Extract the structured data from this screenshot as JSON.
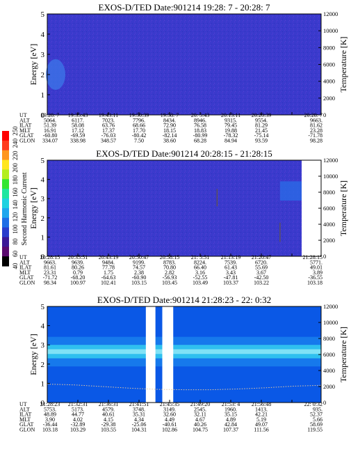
{
  "chart_data": [
    {
      "type": "heatmap",
      "title": "EXOS-D/TED   Date:901214  19:28: 7 - 20:28: 7",
      "ylabel": "Energy [eV]",
      "y2label": "Temperature [K]",
      "ylim": [
        0,
        5
      ],
      "yticks": [
        "0",
        "1",
        "2",
        "3",
        "4",
        "5"
      ],
      "y2lim": [
        0,
        12000
      ],
      "y2ticks": [
        "0",
        "2000",
        "4000",
        "6000",
        "8000",
        "10000",
        "12000"
      ],
      "background_color": "#3a3acc",
      "gaps": [],
      "band": null,
      "temperature_curve": null,
      "table": {
        "row_labels": [
          "UT",
          "ALT",
          "ILAT",
          "MLT",
          "GLAT",
          "GLON"
        ],
        "columns": [
          [
            "19:28: 7",
            "5064.",
            "51.39",
            "16.91",
            "-60.80",
            "334.07"
          ],
          [
            "19:35:43",
            "6117.",
            "58.08",
            "17.12",
            "-69.59",
            "338.98"
          ],
          [
            "19:43:11",
            "7023.",
            "63.76",
            "17.37",
            "-76.03",
            "348.57"
          ],
          [
            "19:50:39",
            "7796.",
            "68.66",
            "17.70",
            "-80.42",
            "7.50"
          ],
          [
            "19:58: 7",
            "8434.",
            "72.90",
            "18.15",
            "-82.14",
            "38.60"
          ],
          [
            "20: 5:43",
            "8946.",
            "76.58",
            "18.83",
            "-80.99",
            "68.28"
          ],
          [
            "20:13:11",
            "9315.",
            "79.45",
            "19.88",
            "-78.32",
            "84.94"
          ],
          [
            "20:20:39",
            "9554.",
            "81.29",
            "21.45",
            "-75.14",
            "93.59"
          ],
          [
            "20:28: 7",
            "9663.",
            "81.62",
            "23.28",
            "-71.78",
            "98.28"
          ]
        ]
      }
    },
    {
      "type": "heatmap",
      "title": "EXOS-D/TED   Date:901214  20:28:15 - 21:28:15",
      "ylabel": "Energy [eV]",
      "y2label": "Temperature [K]",
      "ylim": [
        0,
        5
      ],
      "yticks": [
        "0",
        "1",
        "2",
        "3",
        "4",
        "5"
      ],
      "y2lim": [
        0,
        12000
      ],
      "y2ticks": [
        "0",
        "2000",
        "4000",
        "6000",
        "8000",
        "10000",
        "12000"
      ],
      "background_color": "#3a3acc",
      "gaps": [],
      "band": null,
      "temperature_curve": null,
      "table": {
        "row_labels": [
          "UT",
          "ALT",
          "ILAT",
          "MLT",
          "GLAT",
          "GLON"
        ],
        "columns": [
          [
            "20:28:15",
            "9663.",
            "81.61",
            "23.31",
            "-71.72",
            "98.34"
          ],
          [
            "20:35:51",
            "9639.",
            "80.26",
            "0.79",
            "-68.20",
            "100.97"
          ],
          [
            "20:43:19",
            "9484.",
            "77.78",
            "1.75",
            "-64.63",
            "102.41"
          ],
          [
            "20:50:47",
            "9199.",
            "74.57",
            "2.38",
            "-60.90",
            "103.15"
          ],
          [
            "20:58:15",
            "8783.",
            "70.80",
            "2.82",
            "-56.93",
            "103.45"
          ],
          [
            "21: 5:51",
            "8224.",
            "66.40",
            "3.16",
            "-52.55",
            "103.49"
          ],
          [
            "21:13:19",
            "7539.",
            "61.43",
            "3.43",
            "-47.81",
            "103.37"
          ],
          [
            "21:20:47",
            "6720.",
            "55.69",
            "3.67",
            "-42.50",
            "103.22"
          ],
          [
            "21:28:15",
            "5771.",
            "49.01",
            "3.89",
            "-36.55",
            "103.18"
          ]
        ]
      }
    },
    {
      "type": "heatmap",
      "title": "EXOS-D/TED   Date:901214  21:28:23 - 22: 0:32",
      "ylabel": "Energy [eV]",
      "y2label": "Temperature [K]",
      "ylim": [
        0,
        5
      ],
      "yticks": [
        "0",
        "1",
        "2",
        "3",
        "4",
        "5"
      ],
      "y2lim": [
        0,
        12000
      ],
      "y2ticks": [
        "0",
        "2000",
        "4000",
        "6000",
        "8000",
        "10000",
        "12000"
      ],
      "background_color": "#0a58e6",
      "gaps": [
        [
          0.36,
          0.395
        ],
        [
          0.42,
          0.46
        ]
      ],
      "band": {
        "center": 2.65,
        "half_width": 0.35
      },
      "temperature_curve": {
        "x": [
          0.0,
          0.1,
          0.2,
          0.3,
          0.4,
          0.5,
          0.6,
          0.7,
          0.8,
          0.9,
          1.0
        ],
        "y": [
          2300,
          2200,
          2000,
          1800,
          1650,
          1600,
          1600,
          1700,
          1850,
          2050,
          2150
        ]
      },
      "table": {
        "row_labels": [
          "UT",
          "ALT",
          "ILAT",
          "MLT",
          "GLAT",
          "GLON"
        ],
        "columns": [
          [
            "21:28:23",
            "5753.",
            "48.89",
            "3.90",
            "-36.44",
            "103.18"
          ],
          [
            "21:32:31",
            "5173.",
            "44.77",
            "4.02",
            "-32.89",
            "103.29"
          ],
          [
            "21:36:31",
            "4579.",
            "40.61",
            "4.15",
            "-29.38",
            "103.55"
          ],
          [
            "21:41:51",
            "3748.",
            "35.31",
            "4.34",
            "-25.06",
            "104.31"
          ],
          [
            "21:45:35",
            "3149.",
            "32.60",
            "4.49",
            "-40.61",
            "102.86"
          ],
          [
            "21:49:20",
            "2545.",
            "32.11",
            "4.67",
            "40.26",
            "104.75"
          ],
          [
            "21:53: 4",
            "1960.",
            "35.15",
            "4.89",
            "42.84",
            "107.37"
          ],
          [
            "21:56:48",
            "1413.",
            "42.21",
            "5.19",
            "49.07",
            "111.56"
          ],
          [
            "22: 0:32",
            "935.",
            "52.37",
            "5.66",
            "58.69",
            "119.55"
          ]
        ]
      }
    }
  ],
  "colorbar": {
    "label": "Second Harmonic Current",
    "ticks": [
      "40",
      "60",
      "80",
      "100",
      "120",
      "140",
      "160",
      "180",
      "200",
      "220",
      "240",
      "250"
    ],
    "colors": [
      "#000000",
      "#5a0a6e",
      "#3c1896",
      "#2a3ccc",
      "#1e6ee6",
      "#1ea6ee",
      "#1ed2e0",
      "#1ee6a0",
      "#32e632",
      "#b4ee1e",
      "#ffe61e",
      "#ff961e",
      "#ff3c1e",
      "#ff0000"
    ]
  }
}
